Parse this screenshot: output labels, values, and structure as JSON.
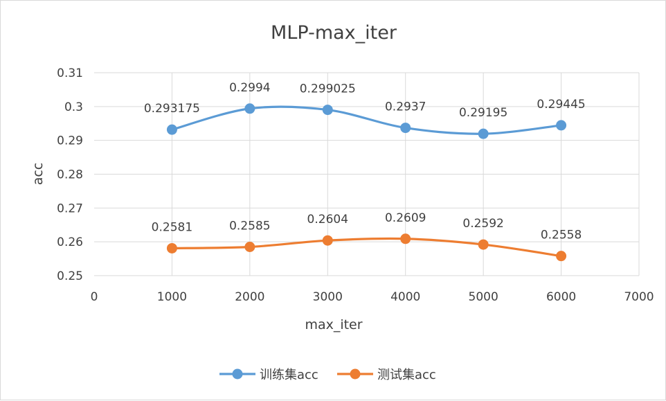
{
  "chart_data": {
    "type": "scatter",
    "title": "MLP-max_iter",
    "xlabel": "max_iter",
    "ylabel": "acc",
    "xlim": [
      0,
      7000
    ],
    "ylim": [
      0.25,
      0.31
    ],
    "x_ticks": [
      0,
      1000,
      2000,
      3000,
      4000,
      5000,
      6000,
      7000
    ],
    "y_ticks": [
      0.25,
      0.26,
      0.27,
      0.28,
      0.29,
      0.3,
      0.31
    ],
    "x_tick_labels": [
      "0",
      "1000",
      "2000",
      "3000",
      "4000",
      "5000",
      "6000",
      "7000"
    ],
    "y_tick_labels": [
      "0.25",
      "0.26",
      "0.27",
      "0.28",
      "0.29",
      "0.3",
      "0.31"
    ],
    "grid": true,
    "smooth": true,
    "legend_position": "bottom",
    "series": [
      {
        "name": "训练集acc",
        "color": "#5b9bd5",
        "x": [
          1000,
          2000,
          3000,
          4000,
          5000,
          6000
        ],
        "y": [
          0.293175,
          0.2994,
          0.299025,
          0.2937,
          0.29195,
          0.29445
        ],
        "labels": [
          "0.293175",
          "0.2994",
          "0.299025",
          "0.2937",
          "0.29195",
          "0.29445"
        ]
      },
      {
        "name": "测试集acc",
        "color": "#ed7d31",
        "x": [
          1000,
          2000,
          3000,
          4000,
          5000,
          6000
        ],
        "y": [
          0.2581,
          0.2585,
          0.2604,
          0.2609,
          0.2592,
          0.2558
        ],
        "labels": [
          "0.2581",
          "0.2585",
          "0.2604",
          "0.2609",
          "0.2592",
          "0.2558"
        ]
      }
    ]
  }
}
